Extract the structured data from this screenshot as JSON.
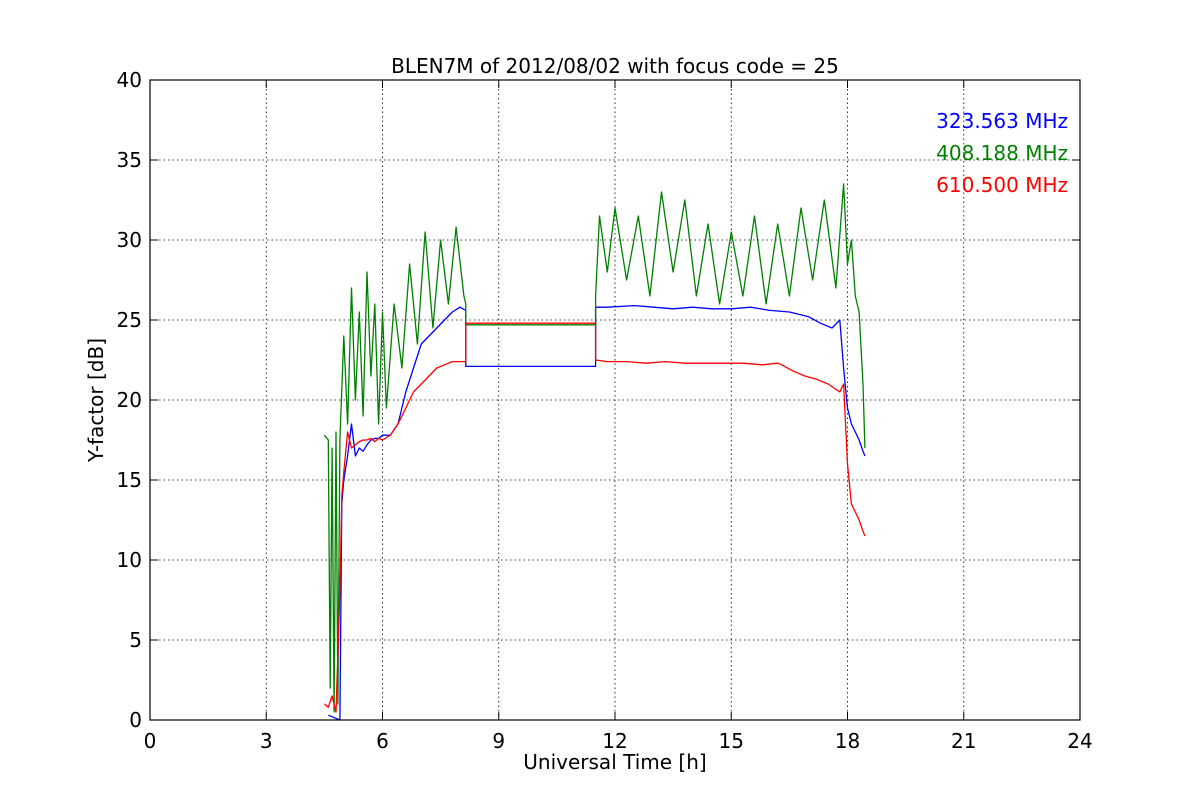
{
  "chart_data": {
    "type": "line",
    "title": "BLEN7M of 2012/08/02 with focus code = 25",
    "xlabel": "Universal Time [h]",
    "ylabel": "Y-factor [dB]",
    "xlim": [
      0,
      24
    ],
    "ylim": [
      0,
      40
    ],
    "x_ticks": [
      0,
      3,
      6,
      9,
      12,
      15,
      18,
      21,
      24
    ],
    "y_ticks": [
      0,
      5,
      10,
      15,
      20,
      25,
      30,
      35,
      40
    ],
    "grid": true,
    "legend_position": "top-right",
    "series": [
      {
        "name": "323.563 MHz",
        "color": "#0000ff",
        "x": [
          4.6,
          4.9,
          4.95,
          5.0,
          5.1,
          5.2,
          5.3,
          5.4,
          5.5,
          5.6,
          5.7,
          5.8,
          5.9,
          6.0,
          6.2,
          6.4,
          6.6,
          6.8,
          7.0,
          7.2,
          7.4,
          7.6,
          7.8,
          8.0,
          8.15,
          8.15,
          11.5,
          11.5,
          11.8,
          12.5,
          13.0,
          13.5,
          14.0,
          14.5,
          15.0,
          15.5,
          16.0,
          16.5,
          17.0,
          17.3,
          17.6,
          17.8,
          17.9,
          18.0,
          18.1,
          18.2,
          18.3,
          18.4,
          18.45
        ],
        "y": [
          0.3,
          0.0,
          13.5,
          15.0,
          16.5,
          18.5,
          16.5,
          17.0,
          16.8,
          17.2,
          17.5,
          17.6,
          17.6,
          17.8,
          17.8,
          18.5,
          20.5,
          22.0,
          23.5,
          24.0,
          24.5,
          25.0,
          25.5,
          25.8,
          25.6,
          22.1,
          22.1,
          25.8,
          25.8,
          25.9,
          25.8,
          25.7,
          25.8,
          25.7,
          25.7,
          25.8,
          25.6,
          25.5,
          25.2,
          24.8,
          24.5,
          25.0,
          22.0,
          19.5,
          18.5,
          18.0,
          17.5,
          16.8,
          16.5
        ]
      },
      {
        "name": "408.188 MHz",
        "color": "#008000",
        "x": [
          4.5,
          4.6,
          4.65,
          4.7,
          4.75,
          4.8,
          4.85,
          4.9,
          5.0,
          5.1,
          5.2,
          5.3,
          5.4,
          5.5,
          5.6,
          5.7,
          5.8,
          5.9,
          6.0,
          6.1,
          6.3,
          6.5,
          6.7,
          6.9,
          7.1,
          7.3,
          7.5,
          7.7,
          7.9,
          8.1,
          8.15,
          8.15,
          11.5,
          11.5,
          11.6,
          11.8,
          12.0,
          12.3,
          12.6,
          12.9,
          13.2,
          13.5,
          13.8,
          14.1,
          14.4,
          14.7,
          15.0,
          15.3,
          15.6,
          15.9,
          16.2,
          16.5,
          16.8,
          17.1,
          17.4,
          17.7,
          17.9,
          18.0,
          18.1,
          18.2,
          18.3,
          18.4,
          18.45
        ],
        "y": [
          17.8,
          17.5,
          2.0,
          17.0,
          0.5,
          18.0,
          1.0,
          17.5,
          24.0,
          18.5,
          27.0,
          20.0,
          25.5,
          19.0,
          28.0,
          21.5,
          26.0,
          18.5,
          25.5,
          19.5,
          26.0,
          22.0,
          28.5,
          23.5,
          30.5,
          24.5,
          30.0,
          26.0,
          30.8,
          26.5,
          26.0,
          24.7,
          24.7,
          26.5,
          31.5,
          28.0,
          32.0,
          27.5,
          31.5,
          26.5,
          33.0,
          28.0,
          32.5,
          26.5,
          31.0,
          26.0,
          30.5,
          26.5,
          31.5,
          26.0,
          31.0,
          26.5,
          32.0,
          27.5,
          32.5,
          27.0,
          33.5,
          28.5,
          30.0,
          26.5,
          25.5,
          21.0,
          17.0
        ]
      },
      {
        "name": "610.500 MHz",
        "color": "#ff0000",
        "x": [
          4.5,
          4.6,
          4.7,
          4.8,
          4.9,
          4.95,
          5.0,
          5.1,
          5.2,
          5.3,
          5.4,
          5.5,
          5.6,
          5.7,
          5.8,
          5.9,
          6.0,
          6.2,
          6.4,
          6.6,
          6.8,
          7.0,
          7.2,
          7.4,
          7.6,
          7.8,
          8.0,
          8.15,
          8.15,
          11.5,
          11.5,
          11.8,
          12.3,
          12.8,
          13.3,
          13.8,
          14.3,
          14.8,
          15.3,
          15.8,
          16.2,
          16.3,
          16.6,
          16.9,
          17.2,
          17.5,
          17.8,
          17.9,
          18.0,
          18.1,
          18.2,
          18.3,
          18.4,
          18.45
        ],
        "y": [
          1.0,
          0.8,
          1.5,
          0.5,
          8.0,
          14.0,
          15.5,
          18.0,
          17.0,
          17.2,
          17.4,
          17.5,
          17.5,
          17.6,
          17.4,
          17.6,
          17.5,
          17.8,
          18.5,
          19.5,
          20.5,
          21.0,
          21.5,
          22.0,
          22.2,
          22.4,
          22.4,
          22.4,
          24.8,
          24.8,
          22.5,
          22.4,
          22.4,
          22.3,
          22.4,
          22.3,
          22.3,
          22.3,
          22.3,
          22.2,
          22.3,
          22.2,
          21.8,
          21.5,
          21.3,
          21.0,
          20.5,
          21.0,
          16.0,
          13.5,
          13.0,
          12.5,
          11.8,
          11.5
        ]
      }
    ]
  }
}
